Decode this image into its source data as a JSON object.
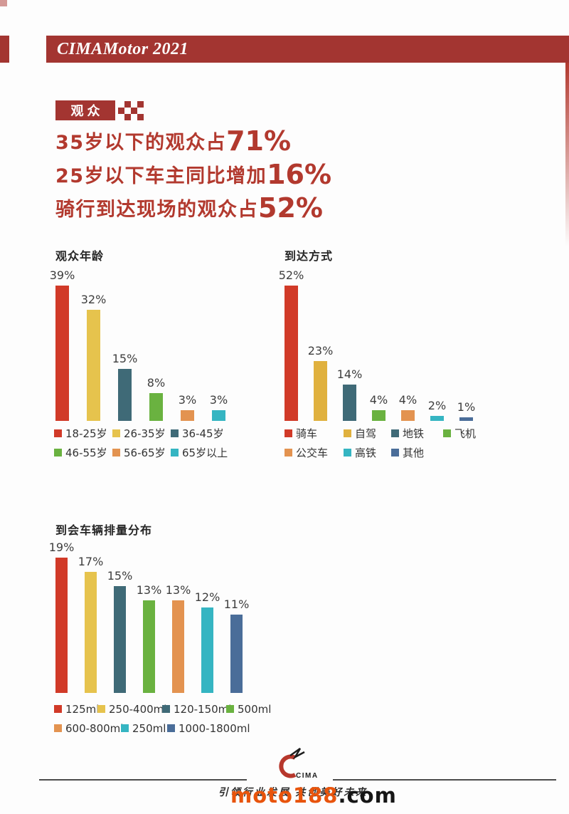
{
  "header": {
    "title": "CIMAMotor 2021"
  },
  "badge": {
    "label": "观众"
  },
  "headlines": [
    {
      "text": "35岁以下的观众占",
      "number": "71%"
    },
    {
      "text": "25岁以下车主同比增加",
      "number": "16%"
    },
    {
      "text": "骑行到达现场的观众占",
      "number": "52%"
    }
  ],
  "colors": {
    "header-red": "#a33531",
    "headline-red": "#b2392e",
    "watermark-orange": "#e8540c"
  },
  "chart_data": [
    {
      "type": "bar",
      "title": "观众年龄",
      "categories": [
        "18-25岁",
        "26-35岁",
        "36-45岁",
        "46-55岁",
        "56-65岁",
        "65岁以上"
      ],
      "values": [
        39,
        32,
        15,
        8,
        3,
        3
      ],
      "unit": "%",
      "colors": [
        "#d13a28",
        "#e6c34d",
        "#3f6a77",
        "#6ab240",
        "#e39350",
        "#35b5c2"
      ],
      "ylim": [
        0,
        39
      ],
      "grid": false,
      "legend_position": "bottom",
      "legend_item_widths": [
        82,
        82,
        110,
        82,
        82,
        110
      ]
    },
    {
      "type": "bar",
      "title": "到达方式",
      "categories": [
        "骑车",
        "自驾",
        "地铁",
        "飞机",
        "公交车",
        "高铁",
        "其他"
      ],
      "values": [
        52,
        23,
        14,
        4,
        4,
        2,
        1
      ],
      "unit": "%",
      "colors": [
        "#d13a28",
        "#e0b13e",
        "#3f6a77",
        "#6ab240",
        "#e39350",
        "#35b5c2",
        "#4a6d99"
      ],
      "ylim": [
        0,
        52
      ],
      "grid": false,
      "legend_position": "bottom",
      "legend_item_widths": [
        83,
        67,
        73,
        80,
        83,
        67,
        150
      ]
    },
    {
      "type": "bar",
      "title": "到会车辆排量分布",
      "categories": [
        "125ml",
        "250-400ml",
        "120-150ml",
        "500ml",
        "600-800ml",
        "250ml",
        "1000-1800ml"
      ],
      "values": [
        19,
        17,
        15,
        13,
        13,
        12,
        11
      ],
      "unit": "%",
      "colors": [
        "#d13a28",
        "#e6c34d",
        "#3f6a77",
        "#6ab240",
        "#e39350",
        "#35b5c2",
        "#4a6d99"
      ],
      "ylim": [
        0,
        19
      ],
      "grid": false,
      "legend_position": "bottom",
      "legend_item_widths": [
        61,
        91,
        90,
        80,
        94,
        65,
        140
      ]
    }
  ],
  "footer": {
    "logo_text": "CIMA",
    "tagline": "引领行业发展 共创美好未来",
    "watermark": {
      "brand": "moto188",
      "suffix": ".com"
    }
  }
}
